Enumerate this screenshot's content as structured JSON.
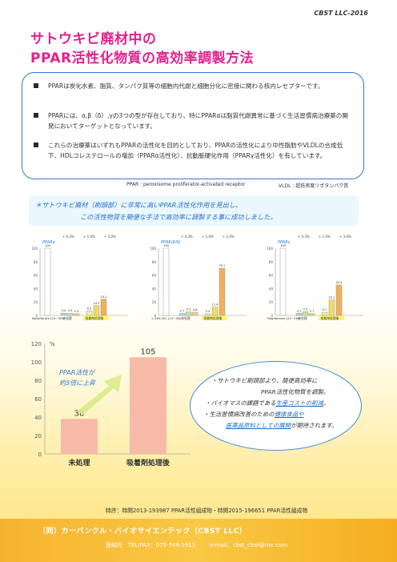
{
  "brand": "CBST LLC-2016",
  "title_line1": "サトウキビ廃材中の",
  "title_line2": "PPAR活性化物質の高効率調製方法",
  "info": [
    {
      "text": "PPARは炭化水素、脂質、タンパク質等の細胞内代謝と細胞分化に密接に関わる核内レセプターです。"
    },
    {
      "text": "PPARには、α,β（δ）,γの3つの型が存在しており、特にPPARαは脂質代謝異常に基づく生活習慣病治療薬の開発においてターゲットとなっています。"
    },
    {
      "text": "これらの治療薬はいずれもPPARの活性化を目的としており、PPARの活性化により中性脂肪やVLDLの合成低下、HDLコレステロールの増加（PPARα活性化）、抗動脈硬化作用（PPARγ活性化）を有しています。"
    }
  ],
  "abbr_ppar": "PPAR : peroxisome proliferator-activated receptor",
  "abbr_vldl": "VLDL : 超低密度リポタンパク質",
  "summary_line1": "＊サトウキビ廃材（刷頭部）に非常に高いPPAR活性化作用を見出し、",
  "summary_line2": "この活性物質を簡便な手法で高効率に調製する事に成功しました。",
  "mini_charts": [
    {
      "label": "PPARα",
      "legend": [
        "0.3%",
        "1.0%",
        "3.0%"
      ],
      "categories": [
        "Bezafibrate [10~5M]",
        "未処理",
        "吸着剤処理後"
      ],
      "values": [
        100,
        3.4,
        3.4,
        2.5,
        6.5,
        14.5,
        24.1
      ]
    },
    {
      "label": "PPAR(β/δ)",
      "legend": [
        "0.3%",
        "1.0%",
        "3.0%"
      ],
      "categories": [
        "L-165,041 [10~5M]",
        "未処理",
        "吸着剤処理後"
      ],
      "values": [
        100,
        2.7,
        5.3,
        4.8,
        2.4,
        12.4,
        70.1
      ]
    },
    {
      "label": "PPARγ",
      "legend": [
        "0.3%",
        "1.0%",
        "3.0%"
      ],
      "categories": [
        "Pioglitazone [10~5M]",
        "未処理",
        "吸着剤処理後"
      ],
      "values": [
        100,
        3.1,
        5.5,
        2.7,
        4.7,
        23.1,
        45.4
      ]
    }
  ],
  "chart_data": {
    "type": "bar",
    "categories": [
      "未処理",
      "吸着剤処理後"
    ],
    "values": [
      38,
      105
    ],
    "ylabel": "%",
    "ylim": [
      0,
      120
    ],
    "yticks": [
      "0",
      "20",
      "40",
      "60",
      "80",
      "100",
      "120"
    ],
    "annotation_line1": "PPAR活性が",
    "annotation_line2": "約3倍に上昇",
    "colors": {
      "bar": "#f7baa8",
      "arrow": "#d8ec8a",
      "annotation": "#2e7bd0"
    }
  },
  "ellipse": {
    "l1": "・サトウキビ刷頭部より、簡便高効率に",
    "l2": "PPAR活性化物質を調製。",
    "l3a": "・バイオマスの課題である",
    "l3b": "生産コストの削減",
    "l3c": "。",
    "l4a": "・生活習慣病改善のための",
    "l4b": "健康食品や",
    "l5a": "医薬品原料としての展開",
    "l5b": "が期待されます。"
  },
  "patent": "特許：特開2013-193987 PPAR活性組成物・特開2015-196651 PPAR活性組成物",
  "company": "（同）カーバンクル・バイオサイエンテック（CBST LLC）",
  "contact_label": "連絡先",
  "contact_tel": "TEL/FAX：075-748-1915",
  "contact_email": "e-mail：cbst_cbst@me.com",
  "colors": {
    "title": "#e3218c",
    "accent_blue": "#2e7bc7",
    "footer": "#f7b32d"
  }
}
